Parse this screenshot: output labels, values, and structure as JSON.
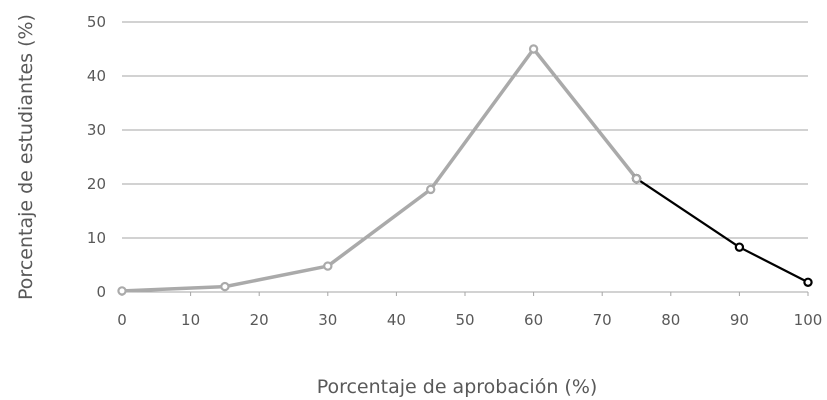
{
  "chart_data": {
    "type": "line",
    "title": "",
    "xlabel": "Porcentaje de aprobación (%)",
    "ylabel": "Porcentaje de estudiantes (%)",
    "xlim": [
      0,
      100
    ],
    "ylim": [
      0,
      50
    ],
    "x_ticks": [
      "0",
      "10",
      "20",
      "30",
      "40",
      "50",
      "60",
      "70",
      "80",
      "90",
      "100"
    ],
    "y_ticks": [
      "0",
      "10",
      "20",
      "30",
      "40",
      "50"
    ],
    "grid": "horizontal",
    "legend": "none",
    "series": [
      {
        "color": "#aaaaaa",
        "x": [
          0,
          15,
          30,
          45,
          60,
          75
        ],
        "y": [
          0.2,
          1.0,
          4.8,
          19,
          45,
          21
        ]
      },
      {
        "color": "#000000",
        "x": [
          75,
          90,
          100
        ],
        "y": [
          21,
          8.3,
          1.8
        ]
      }
    ],
    "colors": {
      "grid": "#a6a6a6",
      "text": "#595959"
    }
  }
}
